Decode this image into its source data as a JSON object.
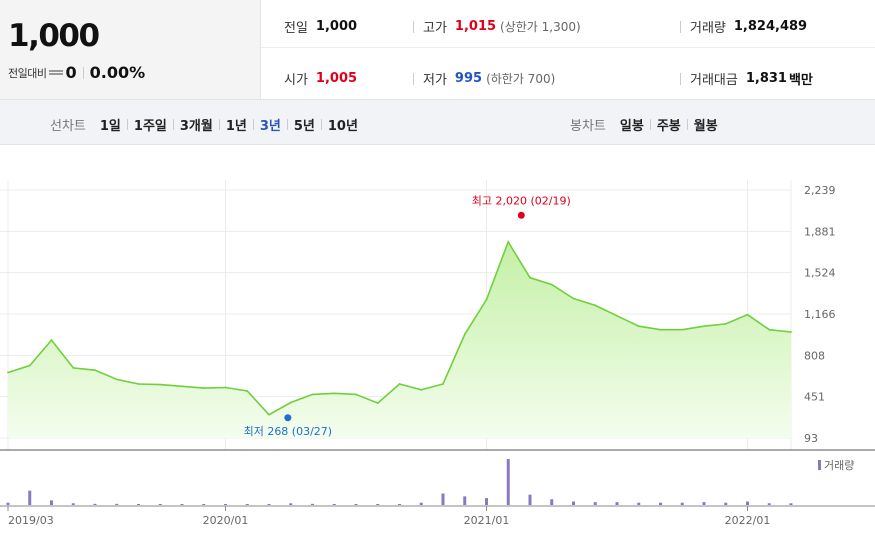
{
  "summary": {
    "price": "1,000",
    "change_label": "전일대비",
    "change_value": "0",
    "change_rate": "0.00%",
    "prev_close": {
      "label": "전일",
      "value": "1,000"
    },
    "high": {
      "label": "고가",
      "value": "1,015",
      "limit": "(상한가 1,300)"
    },
    "volume": {
      "label": "거래량",
      "value": "1,824,489"
    },
    "open": {
      "label": "시가",
      "value": "1,005"
    },
    "low": {
      "label": "저가",
      "value": "995",
      "limit": "(하한가 700)"
    },
    "amount": {
      "label": "거래대금",
      "value": "1,831",
      "unit": "백만"
    }
  },
  "line_chart_bar": {
    "title": "선차트",
    "periods": [
      "1일",
      "1주일",
      "3개월",
      "1년",
      "3년",
      "5년",
      "10년"
    ],
    "active": "3년"
  },
  "candle_chart_bar": {
    "title": "봉차트",
    "periods": [
      "일봉",
      "주봉",
      "월봉"
    ]
  },
  "colors": {
    "line": "#6fd03d",
    "fill_top": "#c4f0a6",
    "fill_bottom": "#f4fdee",
    "volume_bar": "#8a78c4",
    "high_marker": "#e0001b",
    "low_marker": "#1f6fd1",
    "active_period": "#2b55b5"
  },
  "chart_data": {
    "type": "area",
    "title": "",
    "x_tick_labels": [
      "2019/03",
      "2020/01",
      "2021/01",
      "2022/01"
    ],
    "y_tick_labels": [
      "2,239",
      "1,881",
      "1,524",
      "1,166",
      "808",
      "451",
      "93"
    ],
    "ylim": [
      93,
      2239
    ],
    "grid": true,
    "price_series": {
      "name": "",
      "x": [
        "2019/03",
        "2019/04",
        "2019/05",
        "2019/06",
        "2019/07",
        "2019/08",
        "2019/09",
        "2019/10",
        "2019/11",
        "2019/12",
        "2020/01",
        "2020/02",
        "2020/03",
        "2020/04",
        "2020/05",
        "2020/06",
        "2020/07",
        "2020/08",
        "2020/09",
        "2020/10",
        "2020/11",
        "2020/12",
        "2021/01",
        "2021/02",
        "2021/03",
        "2021/04",
        "2021/05",
        "2021/06",
        "2021/07",
        "2021/08",
        "2021/09",
        "2021/10",
        "2021/11",
        "2021/12",
        "2022/01",
        "2022/02",
        "2022/03"
      ],
      "values": [
        660,
        720,
        940,
        700,
        680,
        600,
        560,
        555,
        540,
        525,
        530,
        500,
        295,
        400,
        470,
        480,
        470,
        395,
        560,
        510,
        560,
        990,
        1290,
        1790,
        1480,
        1420,
        1300,
        1240,
        1150,
        1060,
        1030,
        1030,
        1060,
        1080,
        1160,
        1030,
        1010
      ]
    },
    "high_annotation": {
      "label": "최고 2,020 (02/19)",
      "x": "2021/02/19",
      "value": 2020
    },
    "low_annotation": {
      "label": "최저 268 (03/27)",
      "x": "2020/03/27",
      "value": 268
    },
    "volume_series": {
      "name": "거래량",
      "x": [
        "2019/03",
        "2019/04",
        "2019/05",
        "2019/06",
        "2019/07",
        "2019/08",
        "2019/09",
        "2019/10",
        "2019/11",
        "2019/12",
        "2020/01",
        "2020/02",
        "2020/03",
        "2020/04",
        "2020/05",
        "2020/06",
        "2020/07",
        "2020/08",
        "2020/09",
        "2020/10",
        "2020/11",
        "2020/12",
        "2021/01",
        "2021/02",
        "2021/03",
        "2021/04",
        "2021/05",
        "2021/06",
        "2021/07",
        "2021/08",
        "2021/09",
        "2021/10",
        "2021/11",
        "2021/12",
        "2022/01",
        "2022/02",
        "2022/03"
      ],
      "values": [
        4,
        25,
        8,
        3,
        2,
        2,
        1,
        1,
        1,
        1,
        1,
        1,
        1,
        3,
        2,
        1,
        1,
        1,
        1,
        4,
        20,
        15,
        12,
        80,
        18,
        10,
        6,
        5,
        5,
        4,
        4,
        4,
        5,
        4,
        6,
        3,
        3
      ]
    }
  }
}
